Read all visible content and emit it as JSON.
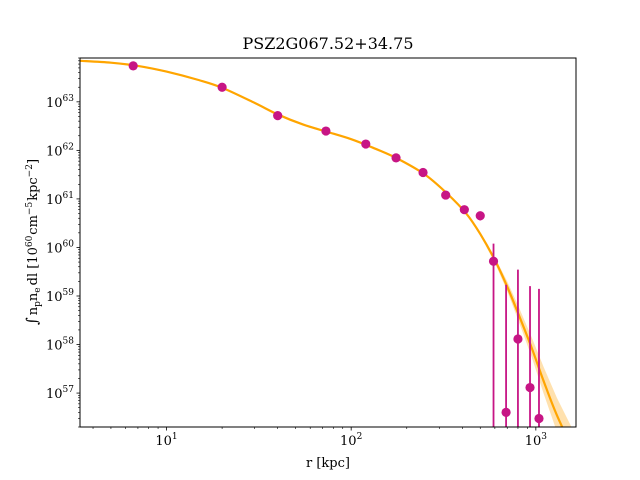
{
  "chart_data": {
    "type": "scatter",
    "title": "PSZ2G067.52+34.75",
    "xlabel": "r [kpc]",
    "ylabel": "∫ n_p n_e dl [10^60 cm^-5 kpc^-2]",
    "ylabel_parts": {
      "integral": "∫",
      "n1": "n",
      "n1_sub": "p",
      "n2": "n",
      "n2_sub": "e",
      "dl": "dl [10",
      "exp1": "60",
      "unit": "cm",
      "exp2": "−5",
      "unit2": "kpc",
      "exp3": "−2",
      "close": "]"
    },
    "x_scale": "log",
    "y_scale": "log",
    "xlim": [
      3.4,
      1650
    ],
    "ylim": [
      2e+56,
      8e+63
    ],
    "grid": false,
    "x_ticks": [
      {
        "value": 10,
        "base": "10",
        "exp": "1"
      },
      {
        "value": 100,
        "base": "10",
        "exp": "2"
      },
      {
        "value": 1000,
        "base": "10",
        "exp": "3"
      }
    ],
    "y_ticks": [
      {
        "value": 1e+57,
        "base": "10",
        "exp": "57"
      },
      {
        "value": 1e+58,
        "base": "10",
        "exp": "58"
      },
      {
        "value": 1e+59,
        "base": "10",
        "exp": "59"
      },
      {
        "value": 1e+60,
        "base": "10",
        "exp": "60"
      },
      {
        "value": 1e+61,
        "base": "10",
        "exp": "61"
      },
      {
        "value": 1e+62,
        "base": "10",
        "exp": "62"
      },
      {
        "value": 1e+63,
        "base": "10",
        "exp": "63"
      }
    ],
    "data_color": "#c71585",
    "model_color": "#ffa500",
    "band_color": "#ffdca0",
    "data_points": [
      {
        "r": 6.6,
        "y": 5.5e+63,
        "ylo": 5.3e+63,
        "yhi": 5.7e+63
      },
      {
        "r": 20,
        "y": 2e+63,
        "ylo": 1.9e+63,
        "yhi": 2.1e+63
      },
      {
        "r": 40,
        "y": 5.2e+62,
        "ylo": 5e+62,
        "yhi": 5.4e+62
      },
      {
        "r": 73,
        "y": 2.5e+62,
        "ylo": 2.4e+62,
        "yhi": 2.6e+62
      },
      {
        "r": 120,
        "y": 1.35e+62,
        "ylo": 1.3e+62,
        "yhi": 1.4e+62
      },
      {
        "r": 175,
        "y": 7e+61,
        "ylo": 6.7e+61,
        "yhi": 7.3e+61
      },
      {
        "r": 245,
        "y": 3.5e+61,
        "ylo": 3.3e+61,
        "yhi": 3.7e+61
      },
      {
        "r": 325,
        "y": 1.2e+61,
        "ylo": 1.1e+61,
        "yhi": 1.3e+61
      },
      {
        "r": 410,
        "y": 6e+60,
        "ylo": 5e+60,
        "yhi": 7e+60
      },
      {
        "r": 500,
        "y": 4.5e+60,
        "ylo": 3.6e+60,
        "yhi": 5.4e+60
      },
      {
        "r": 590,
        "y": 5.2e+59,
        "ylo": 1e+50,
        "yhi": 1.2e+60
      },
      {
        "r": 690,
        "y": 4e+56,
        "ylo": 1e+50,
        "yhi": 1.7e+59
      },
      {
        "r": 800,
        "y": 1.3e+58,
        "ylo": 1e+50,
        "yhi": 3.5e+59
      },
      {
        "r": 930,
        "y": 1.3e+57,
        "ylo": 1e+50,
        "yhi": 1.6e+59
      },
      {
        "r": 1040,
        "y": 3e+56,
        "ylo": 1e+50,
        "yhi": 1.4e+59
      }
    ],
    "model_curve": [
      {
        "r": 3.4,
        "y": 7e+63,
        "lo": 6.8e+63,
        "hi": 7.2e+63
      },
      {
        "r": 5,
        "y": 6.4e+63,
        "lo": 6.2e+63,
        "hi": 6.6e+63
      },
      {
        "r": 7,
        "y": 5.5e+63,
        "lo": 5.3e+63,
        "hi": 5.7e+63
      },
      {
        "r": 10,
        "y": 4.2e+63,
        "lo": 4.05e+63,
        "hi": 4.35e+63
      },
      {
        "r": 15,
        "y": 2.8e+63,
        "lo": 2.7e+63,
        "hi": 2.9e+63
      },
      {
        "r": 20,
        "y": 1.95e+63,
        "lo": 1.88e+63,
        "hi": 2.02e+63
      },
      {
        "r": 30,
        "y": 9.5e+62,
        "lo": 9.2e+62,
        "hi": 9.8e+62
      },
      {
        "r": 40,
        "y": 5.5e+62,
        "lo": 5.3e+62,
        "hi": 5.7e+62
      },
      {
        "r": 55,
        "y": 3.4e+62,
        "lo": 3.3e+62,
        "hi": 3.5e+62
      },
      {
        "r": 73,
        "y": 2.45e+62,
        "lo": 2.38e+62,
        "hi": 2.52e+62
      },
      {
        "r": 100,
        "y": 1.7e+62,
        "lo": 1.65e+62,
        "hi": 1.75e+62
      },
      {
        "r": 130,
        "y": 1.15e+62,
        "lo": 1.12e+62,
        "hi": 1.18e+62
      },
      {
        "r": 175,
        "y": 7e+61,
        "lo": 6.8e+61,
        "hi": 7.2e+61
      },
      {
        "r": 250,
        "y": 3.2e+61,
        "lo": 3.1e+61,
        "hi": 3.3e+61
      },
      {
        "r": 330,
        "y": 1.3e+61,
        "lo": 1.25e+61,
        "hi": 1.35e+61
      },
      {
        "r": 420,
        "y": 5e+60,
        "lo": 4.8e+60,
        "hi": 5.2e+60
      },
      {
        "r": 500,
        "y": 1.9e+60,
        "lo": 1.75e+60,
        "hi": 2.05e+60
      },
      {
        "r": 600,
        "y": 5.5e+59,
        "lo": 4.8e+59,
        "hi": 6.3e+59
      },
      {
        "r": 700,
        "y": 1.55e+59,
        "lo": 1.25e+59,
        "hi": 2e+59
      },
      {
        "r": 800,
        "y": 4.5e+58,
        "lo": 3.3e+58,
        "hi": 6.5e+58
      },
      {
        "r": 950,
        "y": 8.5e+57,
        "lo": 5.5e+57,
        "hi": 1.4e+58
      },
      {
        "r": 1100,
        "y": 1.8e+57,
        "lo": 1e+57,
        "hi": 3.5e+57
      },
      {
        "r": 1300,
        "y": 3.5e+56,
        "lo": 1.6e+56,
        "hi": 8e+56
      },
      {
        "r": 1650,
        "y": 5e+55,
        "lo": 1.5e+55,
        "hi": 1.3e+56
      }
    ]
  }
}
